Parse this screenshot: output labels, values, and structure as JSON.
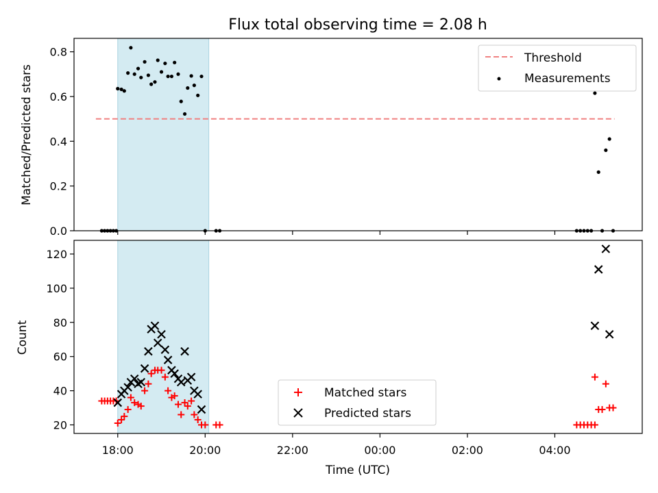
{
  "chart_data": [
    {
      "type": "scatter",
      "title": "Flux total observing time = 2.08 h",
      "xlabel": "",
      "ylabel": "Matched/Predicted stars",
      "xlim": [
        "17:00",
        "06:00"
      ],
      "ylim": [
        0,
        0.86
      ],
      "yticks": [
        0.0,
        0.2,
        0.4,
        0.6,
        0.8
      ],
      "ytick_labels": [
        "0.0",
        "0.2",
        "0.4",
        "0.6",
        "0.8"
      ],
      "highlight_span": [
        "18:00",
        "20:05"
      ],
      "highlight_color": "#d4ebf2",
      "threshold": {
        "name": "Threshold",
        "y": 0.5,
        "x_range": [
          "17:30",
          "05:22"
        ],
        "color": "#f08080"
      },
      "legend": {
        "placement": "top-right",
        "entries": [
          "Threshold",
          "Measurements"
        ]
      },
      "measurements": {
        "name": "Measurements",
        "color": "#000000",
        "points": [
          [
            "17:38",
            0.0
          ],
          [
            "17:42",
            0.0
          ],
          [
            "17:46",
            0.0
          ],
          [
            "17:50",
            0.0
          ],
          [
            "17:54",
            0.0
          ],
          [
            "17:58",
            0.0
          ],
          [
            "18:00",
            0.635
          ],
          [
            "18:05",
            0.632
          ],
          [
            "18:09",
            0.625
          ],
          [
            "18:14",
            0.705
          ],
          [
            "18:18",
            0.818
          ],
          [
            "18:23",
            0.7
          ],
          [
            "18:28",
            0.725
          ],
          [
            "18:32",
            0.685
          ],
          [
            "18:37",
            0.755
          ],
          [
            "18:42",
            0.695
          ],
          [
            "18:46",
            0.655
          ],
          [
            "18:51",
            0.665
          ],
          [
            "18:55",
            0.762
          ],
          [
            "19:00",
            0.71
          ],
          [
            "19:05",
            0.748
          ],
          [
            "19:09",
            0.69
          ],
          [
            "19:14",
            0.69
          ],
          [
            "19:18",
            0.752
          ],
          [
            "19:23",
            0.7
          ],
          [
            "19:27",
            0.578
          ],
          [
            "19:32",
            0.522
          ],
          [
            "19:36",
            0.638
          ],
          [
            "19:41",
            0.692
          ],
          [
            "19:45",
            0.65
          ],
          [
            "19:50",
            0.605
          ],
          [
            "19:55",
            0.69
          ],
          [
            "20:00",
            0.0
          ],
          [
            "20:15",
            0.0
          ],
          [
            "20:20",
            0.0
          ],
          [
            "04:30",
            0.0
          ],
          [
            "04:35",
            0.0
          ],
          [
            "04:40",
            0.0
          ],
          [
            "04:45",
            0.0
          ],
          [
            "04:50",
            0.0
          ],
          [
            "04:55",
            0.615
          ],
          [
            "05:00",
            0.262
          ],
          [
            "05:05",
            0.0
          ],
          [
            "05:10",
            0.36
          ],
          [
            "05:15",
            0.41
          ],
          [
            "05:20",
            0.0
          ]
        ]
      }
    },
    {
      "type": "scatter",
      "title": "",
      "xlabel": "Time (UTC)",
      "ylabel": "Count",
      "xlim": [
        "17:00",
        "06:00"
      ],
      "ylim": [
        15,
        128
      ],
      "xtick_labels": [
        "18:00",
        "20:00",
        "22:00",
        "00:00",
        "02:00",
        "04:00"
      ],
      "yticks": [
        20,
        40,
        60,
        80,
        100,
        120
      ],
      "ytick_labels": [
        "20",
        "40",
        "60",
        "80",
        "100",
        "120"
      ],
      "highlight_span": [
        "18:00",
        "20:05"
      ],
      "highlight_color": "#d4ebf2",
      "legend": {
        "placement": "bottom-center",
        "entries": [
          "Matched stars",
          "Predicted stars"
        ]
      },
      "series": [
        {
          "name": "Matched stars",
          "marker": "plus",
          "color": "#ff0000",
          "points": [
            [
              "17:38",
              34
            ],
            [
              "17:42",
              34
            ],
            [
              "17:46",
              34
            ],
            [
              "17:50",
              34
            ],
            [
              "17:54",
              34
            ],
            [
              "17:58",
              34
            ],
            [
              "18:00",
              21
            ],
            [
              "18:05",
              23
            ],
            [
              "18:09",
              25
            ],
            [
              "18:14",
              29
            ],
            [
              "18:18",
              36
            ],
            [
              "18:23",
              33
            ],
            [
              "18:28",
              32
            ],
            [
              "18:32",
              31
            ],
            [
              "18:37",
              40
            ],
            [
              "18:42",
              44
            ],
            [
              "18:46",
              50
            ],
            [
              "18:51",
              52
            ],
            [
              "18:55",
              52
            ],
            [
              "19:00",
              52
            ],
            [
              "19:05",
              48
            ],
            [
              "19:09",
              40
            ],
            [
              "19:14",
              36
            ],
            [
              "19:18",
              37
            ],
            [
              "19:23",
              32
            ],
            [
              "19:27",
              26
            ],
            [
              "19:32",
              33
            ],
            [
              "19:36",
              31
            ],
            [
              "19:41",
              34
            ],
            [
              "19:45",
              26
            ],
            [
              "19:50",
              23
            ],
            [
              "19:55",
              20
            ],
            [
              "20:00",
              20
            ],
            [
              "20:15",
              20
            ],
            [
              "20:20",
              20
            ],
            [
              "04:30",
              20
            ],
            [
              "04:35",
              20
            ],
            [
              "04:40",
              20
            ],
            [
              "04:45",
              20
            ],
            [
              "04:50",
              20
            ],
            [
              "04:55",
              20
            ],
            [
              "04:55",
              48
            ],
            [
              "05:00",
              29
            ],
            [
              "05:05",
              29
            ],
            [
              "05:10",
              44
            ],
            [
              "05:15",
              30
            ],
            [
              "05:20",
              30
            ]
          ]
        },
        {
          "name": "Predicted stars",
          "marker": "x",
          "color": "#000000",
          "points": [
            [
              "18:00",
              33
            ],
            [
              "18:05",
              38
            ],
            [
              "18:09",
              40
            ],
            [
              "18:14",
              42
            ],
            [
              "18:18",
              45
            ],
            [
              "18:23",
              47
            ],
            [
              "18:28",
              44
            ],
            [
              "18:32",
              45
            ],
            [
              "18:37",
              53
            ],
            [
              "18:42",
              63
            ],
            [
              "18:46",
              76
            ],
            [
              "18:51",
              78
            ],
            [
              "18:55",
              68
            ],
            [
              "19:00",
              73
            ],
            [
              "19:05",
              64
            ],
            [
              "19:09",
              58
            ],
            [
              "19:14",
              52
            ],
            [
              "19:18",
              50
            ],
            [
              "19:23",
              47
            ],
            [
              "19:27",
              45
            ],
            [
              "19:32",
              63
            ],
            [
              "19:36",
              46
            ],
            [
              "19:41",
              48
            ],
            [
              "19:45",
              40
            ],
            [
              "19:50",
              38
            ],
            [
              "19:55",
              29
            ],
            [
              "04:55",
              78
            ],
            [
              "05:00",
              111
            ],
            [
              "05:10",
              123
            ],
            [
              "05:15",
              73
            ]
          ]
        }
      ]
    }
  ]
}
